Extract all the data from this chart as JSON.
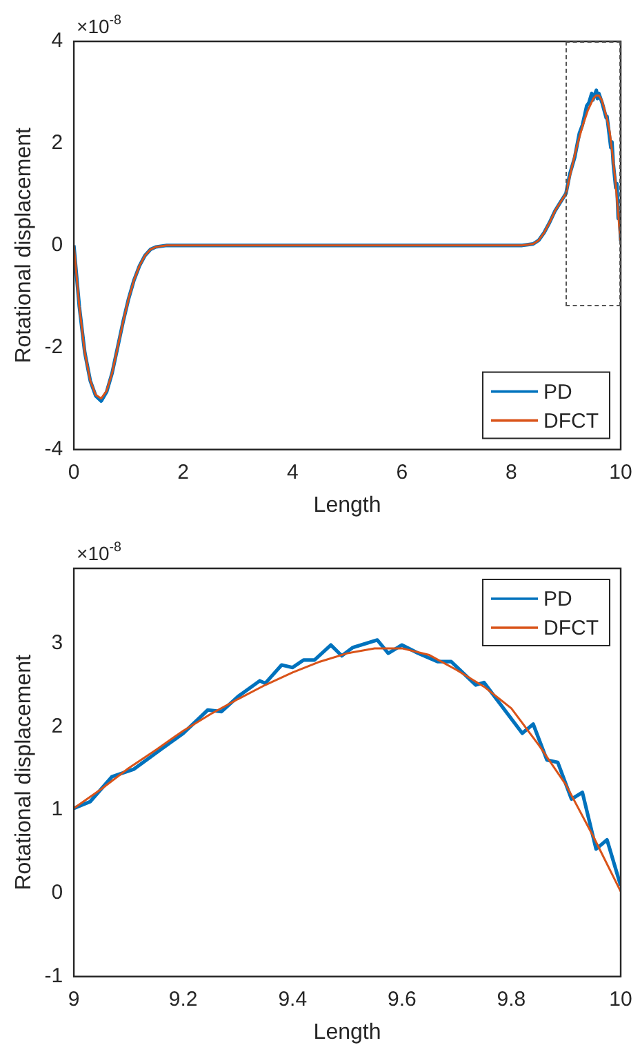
{
  "chart_data": [
    {
      "type": "line",
      "xlabel": "Length",
      "ylabel": "Rotational displacement",
      "annotations": [
        "×10$^{-8}$"
      ],
      "xlim": [
        0,
        10
      ],
      "xticks": [
        0,
        2,
        4,
        6,
        8,
        10
      ],
      "ylim": [
        -4,
        4
      ],
      "yticks": [
        -4,
        -2,
        0,
        2,
        4
      ],
      "legend": "bottom right",
      "marker": "none",
      "line_style": "solid",
      "grid": false,
      "series": [
        {
          "name": "PD",
          "color": "#0072bd",
          "x": [
            0,
            0.05,
            0.1,
            0.2,
            0.3,
            0.4,
            0.5,
            0.6,
            0.7,
            0.8,
            0.9,
            1.0,
            1.1,
            1.2,
            1.3,
            1.4,
            1.5,
            1.7,
            8.2,
            8.4,
            8.5,
            8.6,
            8.7,
            8.8,
            8.9,
            9.0,
            9.07,
            9.16,
            9.245,
            9.3,
            9.34,
            9.38,
            9.42,
            9.47,
            9.49,
            9.555,
            9.575,
            9.6,
            9.665,
            9.735,
            9.75,
            9.82,
            9.84,
            9.865,
            9.91,
            9.93,
            9.955,
            9.975,
            10
          ],
          "values": [
            0,
            -0.6,
            -1.2,
            -2.1,
            -2.65,
            -2.95,
            -3.05,
            -2.87,
            -2.5,
            -2.0,
            -1.5,
            -1.05,
            -0.68,
            -0.4,
            -0.2,
            -0.08,
            -0.03,
            0,
            0,
            0.03,
            0.1,
            0.25,
            0.45,
            0.68,
            0.85,
            1.02,
            1.4,
            1.73,
            2.2,
            2.36,
            2.55,
            2.74,
            2.8,
            2.98,
            2.85,
            3.04,
            2.88,
            2.98,
            2.78,
            2.5,
            2.53,
            1.92,
            2.03,
            1.6,
            1.13,
            1.21,
            0.53,
            0.64,
            0.09
          ]
        },
        {
          "name": "DFCT",
          "color": "#d95319",
          "x": [
            0,
            0.05,
            0.1,
            0.2,
            0.3,
            0.4,
            0.5,
            0.6,
            0.7,
            0.8,
            0.9,
            1.0,
            1.1,
            1.2,
            1.3,
            1.4,
            1.5,
            1.7,
            8.2,
            8.4,
            8.5,
            8.6,
            8.7,
            8.8,
            8.9,
            9.0,
            9.1,
            9.2,
            9.3,
            9.4,
            9.5,
            9.55,
            9.6,
            9.65,
            9.7,
            9.75,
            9.8,
            9.85,
            9.9,
            9.95,
            10
          ],
          "values": [
            0,
            -0.6,
            -1.2,
            -2.1,
            -2.65,
            -2.93,
            -3.0,
            -2.85,
            -2.5,
            -2.0,
            -1.5,
            -1.05,
            -0.68,
            -0.4,
            -0.2,
            -0.08,
            -0.03,
            0,
            0,
            0.03,
            0.1,
            0.25,
            0.45,
            0.68,
            0.85,
            1.02,
            1.5,
            1.95,
            2.33,
            2.65,
            2.88,
            2.94,
            2.94,
            2.86,
            2.68,
            2.48,
            2.22,
            1.78,
            1.3,
            0.68,
            0.02
          ]
        }
      ]
    },
    {
      "type": "line",
      "xlabel": "Length",
      "ylabel": "Rotational displacement",
      "annotations": [
        "×10$^{-8}$"
      ],
      "xlim": [
        9,
        10
      ],
      "xticks": [
        9,
        9.2,
        9.4,
        9.6,
        9.8,
        10
      ],
      "ylim": [
        -1,
        3.9
      ],
      "yticks": [
        -1,
        0,
        1,
        2,
        3
      ],
      "legend": "top right",
      "marker": "none",
      "line_style": "solid",
      "grid": false,
      "series": [
        {
          "name": "PD",
          "color": "#0072bd",
          "x": [
            9.0,
            9.03,
            9.07,
            9.11,
            9.16,
            9.2,
            9.245,
            9.27,
            9.3,
            9.34,
            9.35,
            9.38,
            9.4,
            9.42,
            9.44,
            9.47,
            9.49,
            9.51,
            9.555,
            9.575,
            9.6,
            9.63,
            9.665,
            9.69,
            9.735,
            9.75,
            9.82,
            9.84,
            9.865,
            9.885,
            9.91,
            9.93,
            9.955,
            9.975,
            10
          ],
          "values": [
            1.02,
            1.1,
            1.4,
            1.49,
            1.73,
            1.92,
            2.2,
            2.18,
            2.36,
            2.55,
            2.52,
            2.74,
            2.71,
            2.8,
            2.8,
            2.98,
            2.85,
            2.95,
            3.04,
            2.88,
            2.98,
            2.88,
            2.78,
            2.78,
            2.5,
            2.53,
            1.92,
            2.03,
            1.6,
            1.57,
            1.13,
            1.21,
            0.53,
            0.64,
            0.09
          ]
        },
        {
          "name": "DFCT",
          "color": "#d95319",
          "x": [
            9.0,
            9.05,
            9.1,
            9.15,
            9.2,
            9.25,
            9.3,
            9.35,
            9.4,
            9.45,
            9.5,
            9.55,
            9.6,
            9.65,
            9.7,
            9.75,
            9.8,
            9.85,
            9.9,
            9.95,
            10
          ],
          "values": [
            1.02,
            1.25,
            1.5,
            1.72,
            1.95,
            2.15,
            2.33,
            2.5,
            2.65,
            2.78,
            2.88,
            2.94,
            2.94,
            2.86,
            2.68,
            2.48,
            2.22,
            1.78,
            1.3,
            0.68,
            0.02
          ]
        }
      ]
    }
  ]
}
